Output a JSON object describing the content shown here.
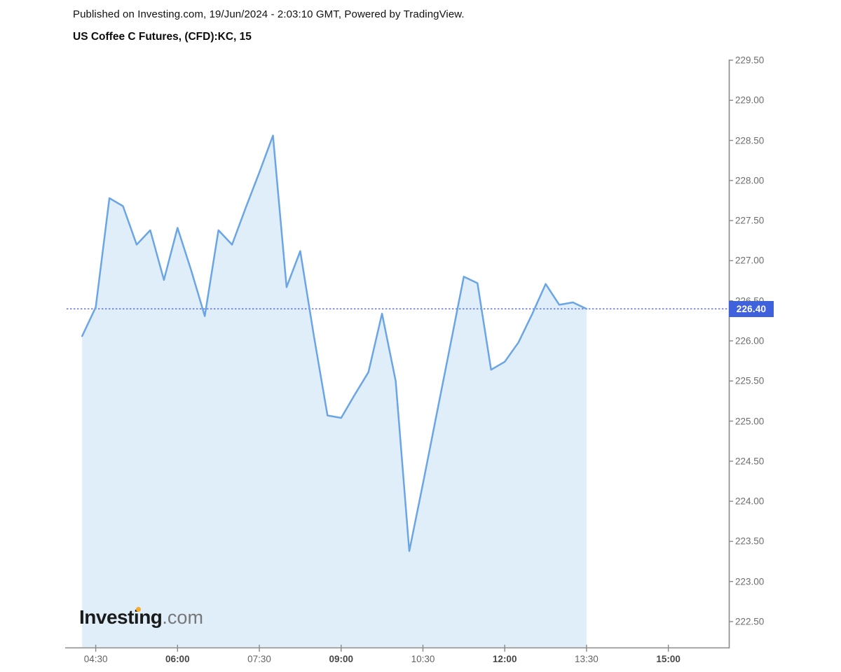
{
  "header": {
    "published_line": "Published on Investing.com, 19/Jun/2024 - 2:03:10 GMT, Powered by TradingView.",
    "instrument_title": "US Coffee C Futures, (CFD):KC, 15"
  },
  "logo": {
    "main": "Investing",
    "com": ".com",
    "dot_color": "#f7a928"
  },
  "price_badge": {
    "label": "226.40",
    "color": "#3f62dc",
    "text_color": "#ffffff"
  },
  "chart_data": {
    "type": "area",
    "title": "US Coffee C Futures, (CFD):KC, 15",
    "x": [
      "04:15",
      "04:30",
      "04:45",
      "05:00",
      "05:15",
      "05:30",
      "05:45",
      "06:00",
      "06:15",
      "06:30",
      "06:45",
      "07:00",
      "07:15",
      "07:30",
      "07:45",
      "08:00",
      "08:15",
      "08:30",
      "08:45",
      "09:00",
      "09:15",
      "09:30",
      "09:45",
      "10:00",
      "10:15",
      "10:30",
      "10:45",
      "11:00",
      "11:15",
      "11:30",
      "11:45",
      "12:00",
      "12:15",
      "12:30",
      "12:45",
      "13:00",
      "13:15",
      "13:30"
    ],
    "values": [
      226.06,
      226.42,
      227.78,
      227.68,
      227.2,
      227.38,
      226.76,
      227.41,
      226.88,
      226.31,
      227.38,
      227.2,
      227.66,
      228.1,
      228.56,
      226.67,
      227.12,
      226.06,
      225.07,
      225.04,
      225.33,
      225.61,
      226.34,
      225.5,
      223.38,
      224.22,
      225.08,
      225.94,
      226.8,
      226.72,
      225.64,
      225.74,
      225.98,
      226.33,
      226.71,
      226.45,
      226.48,
      226.4
    ],
    "last_price": 226.4,
    "interval_minutes": 15,
    "ylim": [
      222.5,
      229.5
    ],
    "y_ticks": [
      "229.50",
      "229.00",
      "228.50",
      "228.00",
      "227.50",
      "227.00",
      "226.50",
      "226.00",
      "225.50",
      "225.00",
      "224.50",
      "224.00",
      "223.50",
      "223.00",
      "222.50"
    ],
    "x_ticks": [
      {
        "label": "04:30",
        "bold": false
      },
      {
        "label": "06:00",
        "bold": true
      },
      {
        "label": "07:30",
        "bold": false
      },
      {
        "label": "09:00",
        "bold": true
      },
      {
        "label": "10:30",
        "bold": false
      },
      {
        "label": "12:00",
        "bold": true
      },
      {
        "label": "13:30",
        "bold": false
      },
      {
        "label": "15:00",
        "bold": true
      }
    ],
    "line_color": "#6aa5e6",
    "fill_color": "#dfeef9",
    "dotted_line_color": "#5064de",
    "axis_color": "#8a8a8a",
    "grid": false,
    "legend": "none"
  }
}
